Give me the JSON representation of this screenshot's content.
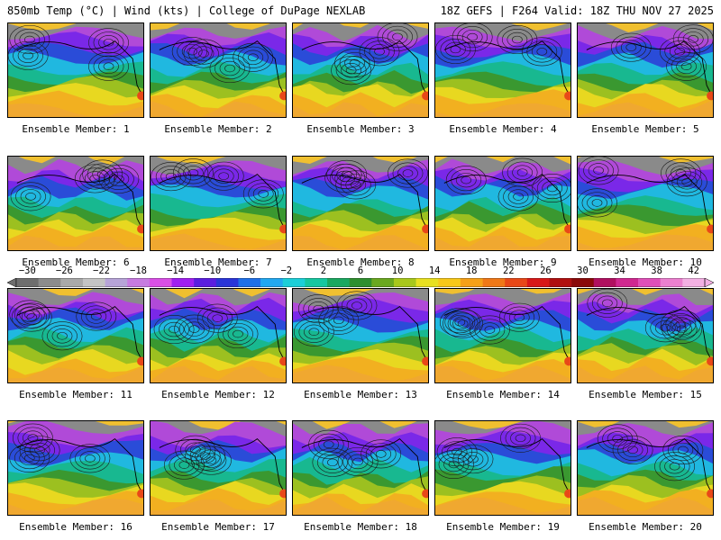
{
  "header": {
    "left": "850mb Temp (°C) | Wind (kts) | College of DuPage NEXLAB",
    "right": "18Z GEFS | F264 Valid: 18Z THU NOV 27 2025"
  },
  "members": [
    {
      "label": "Ensemble Member: 1"
    },
    {
      "label": "Ensemble Member: 2"
    },
    {
      "label": "Ensemble Member: 3"
    },
    {
      "label": "Ensemble Member: 4"
    },
    {
      "label": "Ensemble Member: 5"
    },
    {
      "label": "Ensemble Member: 6"
    },
    {
      "label": "Ensemble Member: 7"
    },
    {
      "label": "Ensemble Member: 8"
    },
    {
      "label": "Ensemble Member: 9"
    },
    {
      "label": "Ensemble Member: 10"
    },
    {
      "label": "Ensemble Member: 11"
    },
    {
      "label": "Ensemble Member: 12"
    },
    {
      "label": "Ensemble Member: 13"
    },
    {
      "label": "Ensemble Member: 14"
    },
    {
      "label": "Ensemble Member: 15"
    },
    {
      "label": "Ensemble Member: 16"
    },
    {
      "label": "Ensemble Member: 17"
    },
    {
      "label": "Ensemble Member: 18"
    },
    {
      "label": "Ensemble Member: 19"
    },
    {
      "label": "Ensemble Member: 20"
    }
  ],
  "colorbar": {
    "ticks": [
      "−30",
      "−26",
      "−22",
      "−18",
      "−14",
      "−10",
      "−6",
      "−2",
      "2",
      "6",
      "10",
      "14",
      "18",
      "22",
      "26",
      "30",
      "34",
      "38",
      "42"
    ],
    "colors": [
      "#6e6e6e",
      "#8c8c8c",
      "#a9a9a9",
      "#c4c4c4",
      "#b7a4d8",
      "#c77be0",
      "#d94fe6",
      "#a020f0",
      "#5a1ee0",
      "#2a35d8",
      "#1f70e8",
      "#22a8f0",
      "#1ccfd8",
      "#16c7a0",
      "#1aa860",
      "#2f8f2f",
      "#6aa820",
      "#a8c81c",
      "#e8e020",
      "#f8c818",
      "#f5a018",
      "#f07818",
      "#e84818",
      "#d81818",
      "#b01010",
      "#8a0a0a",
      "#b01060",
      "#d02890",
      "#e050b8",
      "#ec80d0",
      "#f4b0e4"
    ]
  }
}
